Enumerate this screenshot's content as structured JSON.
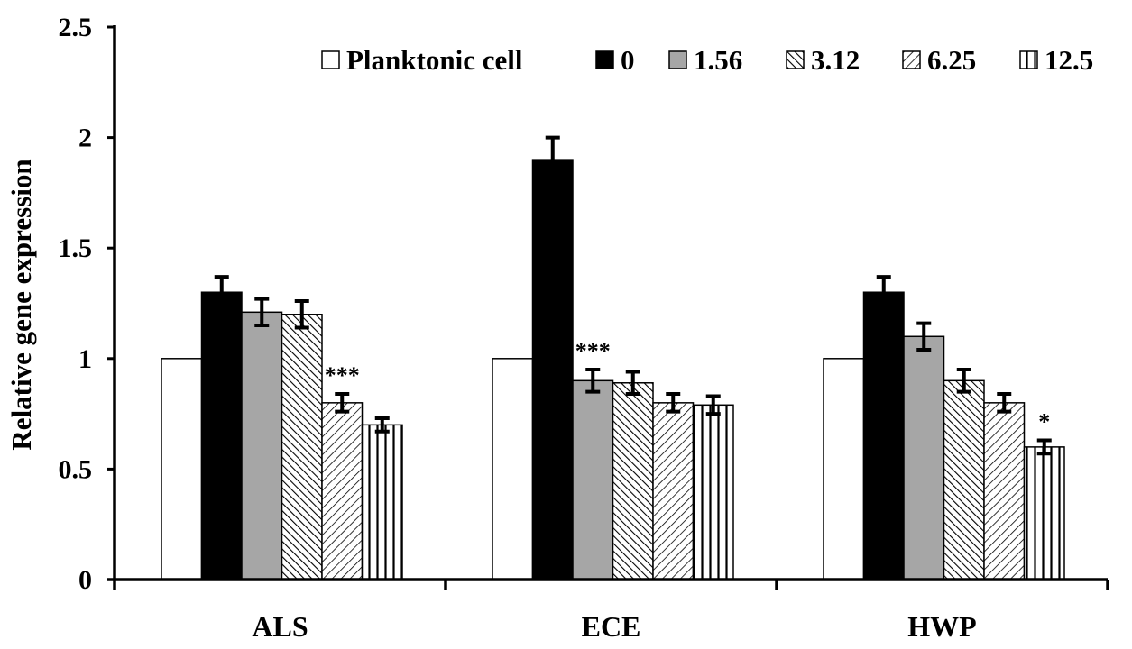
{
  "chart_data": {
    "type": "bar",
    "title": "",
    "xlabel": "",
    "ylabel": "Relative gene expression",
    "ylim": [
      0,
      2.5
    ],
    "yticks": [
      "0",
      "0.5",
      "1",
      "1.5",
      "2",
      "2.5"
    ],
    "ytick_values": [
      0,
      0.5,
      1,
      1.5,
      2,
      2.5
    ],
    "grid": false,
    "legend_position": "top-right",
    "categories": [
      "ALS",
      "ECE",
      "HWP"
    ],
    "series": [
      {
        "name": "Planktonic cell",
        "fill": "white",
        "values": [
          1.0,
          1.0,
          1.0
        ],
        "errors": [
          0,
          0,
          0
        ]
      },
      {
        "name": "0",
        "fill": "black",
        "values": [
          1.3,
          1.9,
          1.3
        ],
        "errors": [
          0.07,
          0.1,
          0.07
        ]
      },
      {
        "name": "1.56",
        "fill": "gray",
        "values": [
          1.21,
          0.9,
          1.1
        ],
        "errors": [
          0.06,
          0.05,
          0.06
        ]
      },
      {
        "name": "3.12",
        "fill": "hatch-dense",
        "values": [
          1.2,
          0.89,
          0.9
        ],
        "errors": [
          0.06,
          0.05,
          0.05
        ]
      },
      {
        "name": "6.25",
        "fill": "hatch-diagonal",
        "values": [
          0.8,
          0.8,
          0.8
        ],
        "errors": [
          0.04,
          0.04,
          0.04
        ]
      },
      {
        "name": "12.5",
        "fill": "vertical-stripes",
        "values": [
          0.7,
          0.79,
          0.6
        ],
        "errors": [
          0.03,
          0.04,
          0.03
        ]
      }
    ],
    "annotations": [
      {
        "text": "***",
        "category": "ALS",
        "series": "6.25"
      },
      {
        "text": "***",
        "category": "ECE",
        "series": "1.56"
      },
      {
        "text": "*",
        "category": "HWP",
        "series": "12.5"
      }
    ],
    "colors": {
      "black": "#000000",
      "gray": "#a6a6a6",
      "white": "#ffffff"
    }
  }
}
